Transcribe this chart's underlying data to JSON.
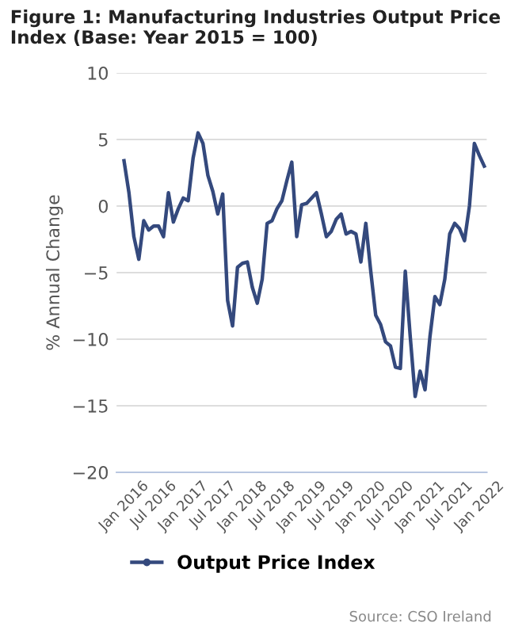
{
  "chart_data": {
    "type": "line",
    "title": "Figure 1: Manufacturing Industries Output Price Index (Base: Year 2015 = 100)",
    "ylabel": "% Annual Change",
    "categories": [
      "Jan 2016",
      null,
      null,
      null,
      null,
      null,
      "Jul 2016",
      null,
      null,
      null,
      null,
      null,
      "Jan 2017",
      null,
      null,
      null,
      null,
      null,
      "Jul 2017",
      null,
      null,
      null,
      null,
      null,
      "Jan 2018",
      null,
      null,
      null,
      null,
      null,
      "Jul 2018",
      null,
      null,
      null,
      null,
      null,
      "Jan 2019",
      null,
      null,
      null,
      null,
      null,
      "Jul 2019",
      null,
      null,
      null,
      null,
      null,
      "Jan 2020",
      null,
      null,
      null,
      null,
      null,
      "Jul 2020",
      null,
      null,
      null,
      null,
      null,
      "Jan 2021",
      null,
      null,
      null,
      null,
      null,
      "Jul 2021",
      null,
      null,
      null,
      null,
      null,
      "Jan 2022",
      null
    ],
    "series": [
      {
        "name": "Output Price Index",
        "color": "#34497d",
        "values": [
          3.4,
          1.0,
          -2.3,
          -4.0,
          -1.1,
          -1.8,
          -1.5,
          -1.5,
          -2.3,
          1.0,
          -1.2,
          -0.2,
          0.6,
          0.4,
          3.6,
          5.5,
          4.7,
          2.3,
          1.1,
          -0.6,
          0.9,
          -7.1,
          -9.0,
          -4.6,
          -4.3,
          -4.2,
          -6.1,
          -7.3,
          -5.5,
          -1.3,
          -1.1,
          -0.2,
          0.4,
          1.9,
          3.3,
          -2.3,
          0.1,
          0.2,
          0.6,
          1.0,
          -0.6,
          -2.3,
          -1.9,
          -1.0,
          -0.6,
          -2.1,
          -1.9,
          -2.1,
          -4.2,
          -1.3,
          -4.9,
          -8.2,
          -8.9,
          -10.2,
          -10.5,
          -12.1,
          -12.2,
          -4.9,
          -9.8,
          -14.3,
          -12.4,
          -13.8,
          -9.8,
          -6.8,
          -7.4,
          -5.5,
          -2.1,
          -1.3,
          -1.7,
          -2.6,
          0.0,
          4.7,
          3.8,
          3.0
        ]
      }
    ],
    "ylim": [
      -20,
      10
    ],
    "yticks": [
      {
        "value": -20,
        "label": "−20"
      },
      {
        "value": -15,
        "label": "−15"
      },
      {
        "value": -10,
        "label": "−10"
      },
      {
        "value": -5,
        "label": "−5"
      },
      0,
      5,
      10
    ],
    "grid": "y",
    "legend": "bottom",
    "annotations": [
      "Source: CSO Ireland"
    ]
  }
}
